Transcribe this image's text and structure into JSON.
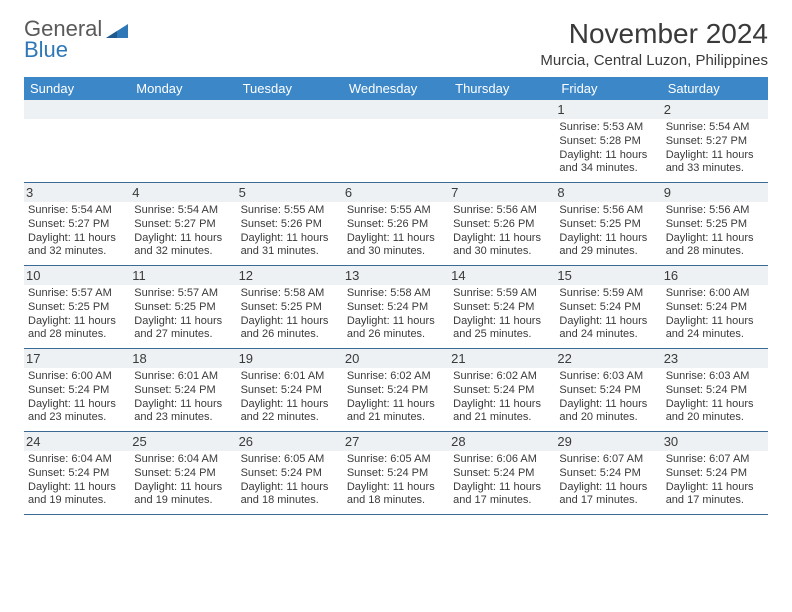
{
  "logo": {
    "word1": "General",
    "word2": "Blue"
  },
  "title": "November 2024",
  "location": "Murcia, Central Luzon, Philippines",
  "colors": {
    "header_bg": "#3b87c8",
    "header_fg": "#ffffff",
    "row_shade": "#eef1f3",
    "rule": "#3b6b95",
    "text": "#3a3a3a",
    "logo_blue": "#2f78b7"
  },
  "weekdays": [
    "Sunday",
    "Monday",
    "Tuesday",
    "Wednesday",
    "Thursday",
    "Friday",
    "Saturday"
  ],
  "weeks": [
    [
      null,
      null,
      null,
      null,
      null,
      {
        "n": "1",
        "sr": "5:53 AM",
        "ss": "5:28 PM",
        "dl": "11 hours and 34 minutes."
      },
      {
        "n": "2",
        "sr": "5:54 AM",
        "ss": "5:27 PM",
        "dl": "11 hours and 33 minutes."
      }
    ],
    [
      {
        "n": "3",
        "sr": "5:54 AM",
        "ss": "5:27 PM",
        "dl": "11 hours and 32 minutes."
      },
      {
        "n": "4",
        "sr": "5:54 AM",
        "ss": "5:27 PM",
        "dl": "11 hours and 32 minutes."
      },
      {
        "n": "5",
        "sr": "5:55 AM",
        "ss": "5:26 PM",
        "dl": "11 hours and 31 minutes."
      },
      {
        "n": "6",
        "sr": "5:55 AM",
        "ss": "5:26 PM",
        "dl": "11 hours and 30 minutes."
      },
      {
        "n": "7",
        "sr": "5:56 AM",
        "ss": "5:26 PM",
        "dl": "11 hours and 30 minutes."
      },
      {
        "n": "8",
        "sr": "5:56 AM",
        "ss": "5:25 PM",
        "dl": "11 hours and 29 minutes."
      },
      {
        "n": "9",
        "sr": "5:56 AM",
        "ss": "5:25 PM",
        "dl": "11 hours and 28 minutes."
      }
    ],
    [
      {
        "n": "10",
        "sr": "5:57 AM",
        "ss": "5:25 PM",
        "dl": "11 hours and 28 minutes."
      },
      {
        "n": "11",
        "sr": "5:57 AM",
        "ss": "5:25 PM",
        "dl": "11 hours and 27 minutes."
      },
      {
        "n": "12",
        "sr": "5:58 AM",
        "ss": "5:25 PM",
        "dl": "11 hours and 26 minutes."
      },
      {
        "n": "13",
        "sr": "5:58 AM",
        "ss": "5:24 PM",
        "dl": "11 hours and 26 minutes."
      },
      {
        "n": "14",
        "sr": "5:59 AM",
        "ss": "5:24 PM",
        "dl": "11 hours and 25 minutes."
      },
      {
        "n": "15",
        "sr": "5:59 AM",
        "ss": "5:24 PM",
        "dl": "11 hours and 24 minutes."
      },
      {
        "n": "16",
        "sr": "6:00 AM",
        "ss": "5:24 PM",
        "dl": "11 hours and 24 minutes."
      }
    ],
    [
      {
        "n": "17",
        "sr": "6:00 AM",
        "ss": "5:24 PM",
        "dl": "11 hours and 23 minutes."
      },
      {
        "n": "18",
        "sr": "6:01 AM",
        "ss": "5:24 PM",
        "dl": "11 hours and 23 minutes."
      },
      {
        "n": "19",
        "sr": "6:01 AM",
        "ss": "5:24 PM",
        "dl": "11 hours and 22 minutes."
      },
      {
        "n": "20",
        "sr": "6:02 AM",
        "ss": "5:24 PM",
        "dl": "11 hours and 21 minutes."
      },
      {
        "n": "21",
        "sr": "6:02 AM",
        "ss": "5:24 PM",
        "dl": "11 hours and 21 minutes."
      },
      {
        "n": "22",
        "sr": "6:03 AM",
        "ss": "5:24 PM",
        "dl": "11 hours and 20 minutes."
      },
      {
        "n": "23",
        "sr": "6:03 AM",
        "ss": "5:24 PM",
        "dl": "11 hours and 20 minutes."
      }
    ],
    [
      {
        "n": "24",
        "sr": "6:04 AM",
        "ss": "5:24 PM",
        "dl": "11 hours and 19 minutes."
      },
      {
        "n": "25",
        "sr": "6:04 AM",
        "ss": "5:24 PM",
        "dl": "11 hours and 19 minutes."
      },
      {
        "n": "26",
        "sr": "6:05 AM",
        "ss": "5:24 PM",
        "dl": "11 hours and 18 minutes."
      },
      {
        "n": "27",
        "sr": "6:05 AM",
        "ss": "5:24 PM",
        "dl": "11 hours and 18 minutes."
      },
      {
        "n": "28",
        "sr": "6:06 AM",
        "ss": "5:24 PM",
        "dl": "11 hours and 17 minutes."
      },
      {
        "n": "29",
        "sr": "6:07 AM",
        "ss": "5:24 PM",
        "dl": "11 hours and 17 minutes."
      },
      {
        "n": "30",
        "sr": "6:07 AM",
        "ss": "5:24 PM",
        "dl": "11 hours and 17 minutes."
      }
    ]
  ],
  "labels": {
    "sunrise": "Sunrise: ",
    "sunset": "Sunset: ",
    "daylight": "Daylight: "
  }
}
